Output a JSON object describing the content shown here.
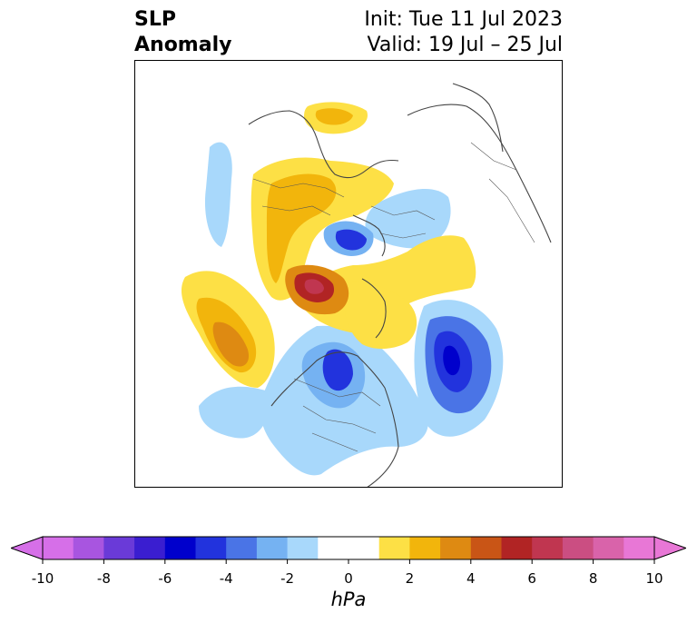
{
  "title": {
    "left_line1": "SLP",
    "left_line2": "Anomaly",
    "init": "Init: Tue 11 Jul 2023",
    "valid": "Valid: 19 Jul – 25 Jul"
  },
  "colorbar": {
    "units": "hPa",
    "ticks": [
      "-10",
      "-8",
      "-6",
      "-4",
      "-2",
      "0",
      "2",
      "4",
      "6",
      "8",
      "10"
    ],
    "colors": [
      "#d66fe8",
      "#a855e0",
      "#6a3ad8",
      "#3a1ed0",
      "#0000cc",
      "#2233dd",
      "#4a74e6",
      "#75b2f2",
      "#a8d8fb",
      "#ffffff",
      "#ffffff",
      "#fde045",
      "#f2b50c",
      "#de8a12",
      "#c95516",
      "#b12424",
      "#c03650",
      "#cb4e82",
      "#d963aa",
      "#e877d6"
    ],
    "min_color": "#d66fe8",
    "max_color": "#e877d6"
  }
}
